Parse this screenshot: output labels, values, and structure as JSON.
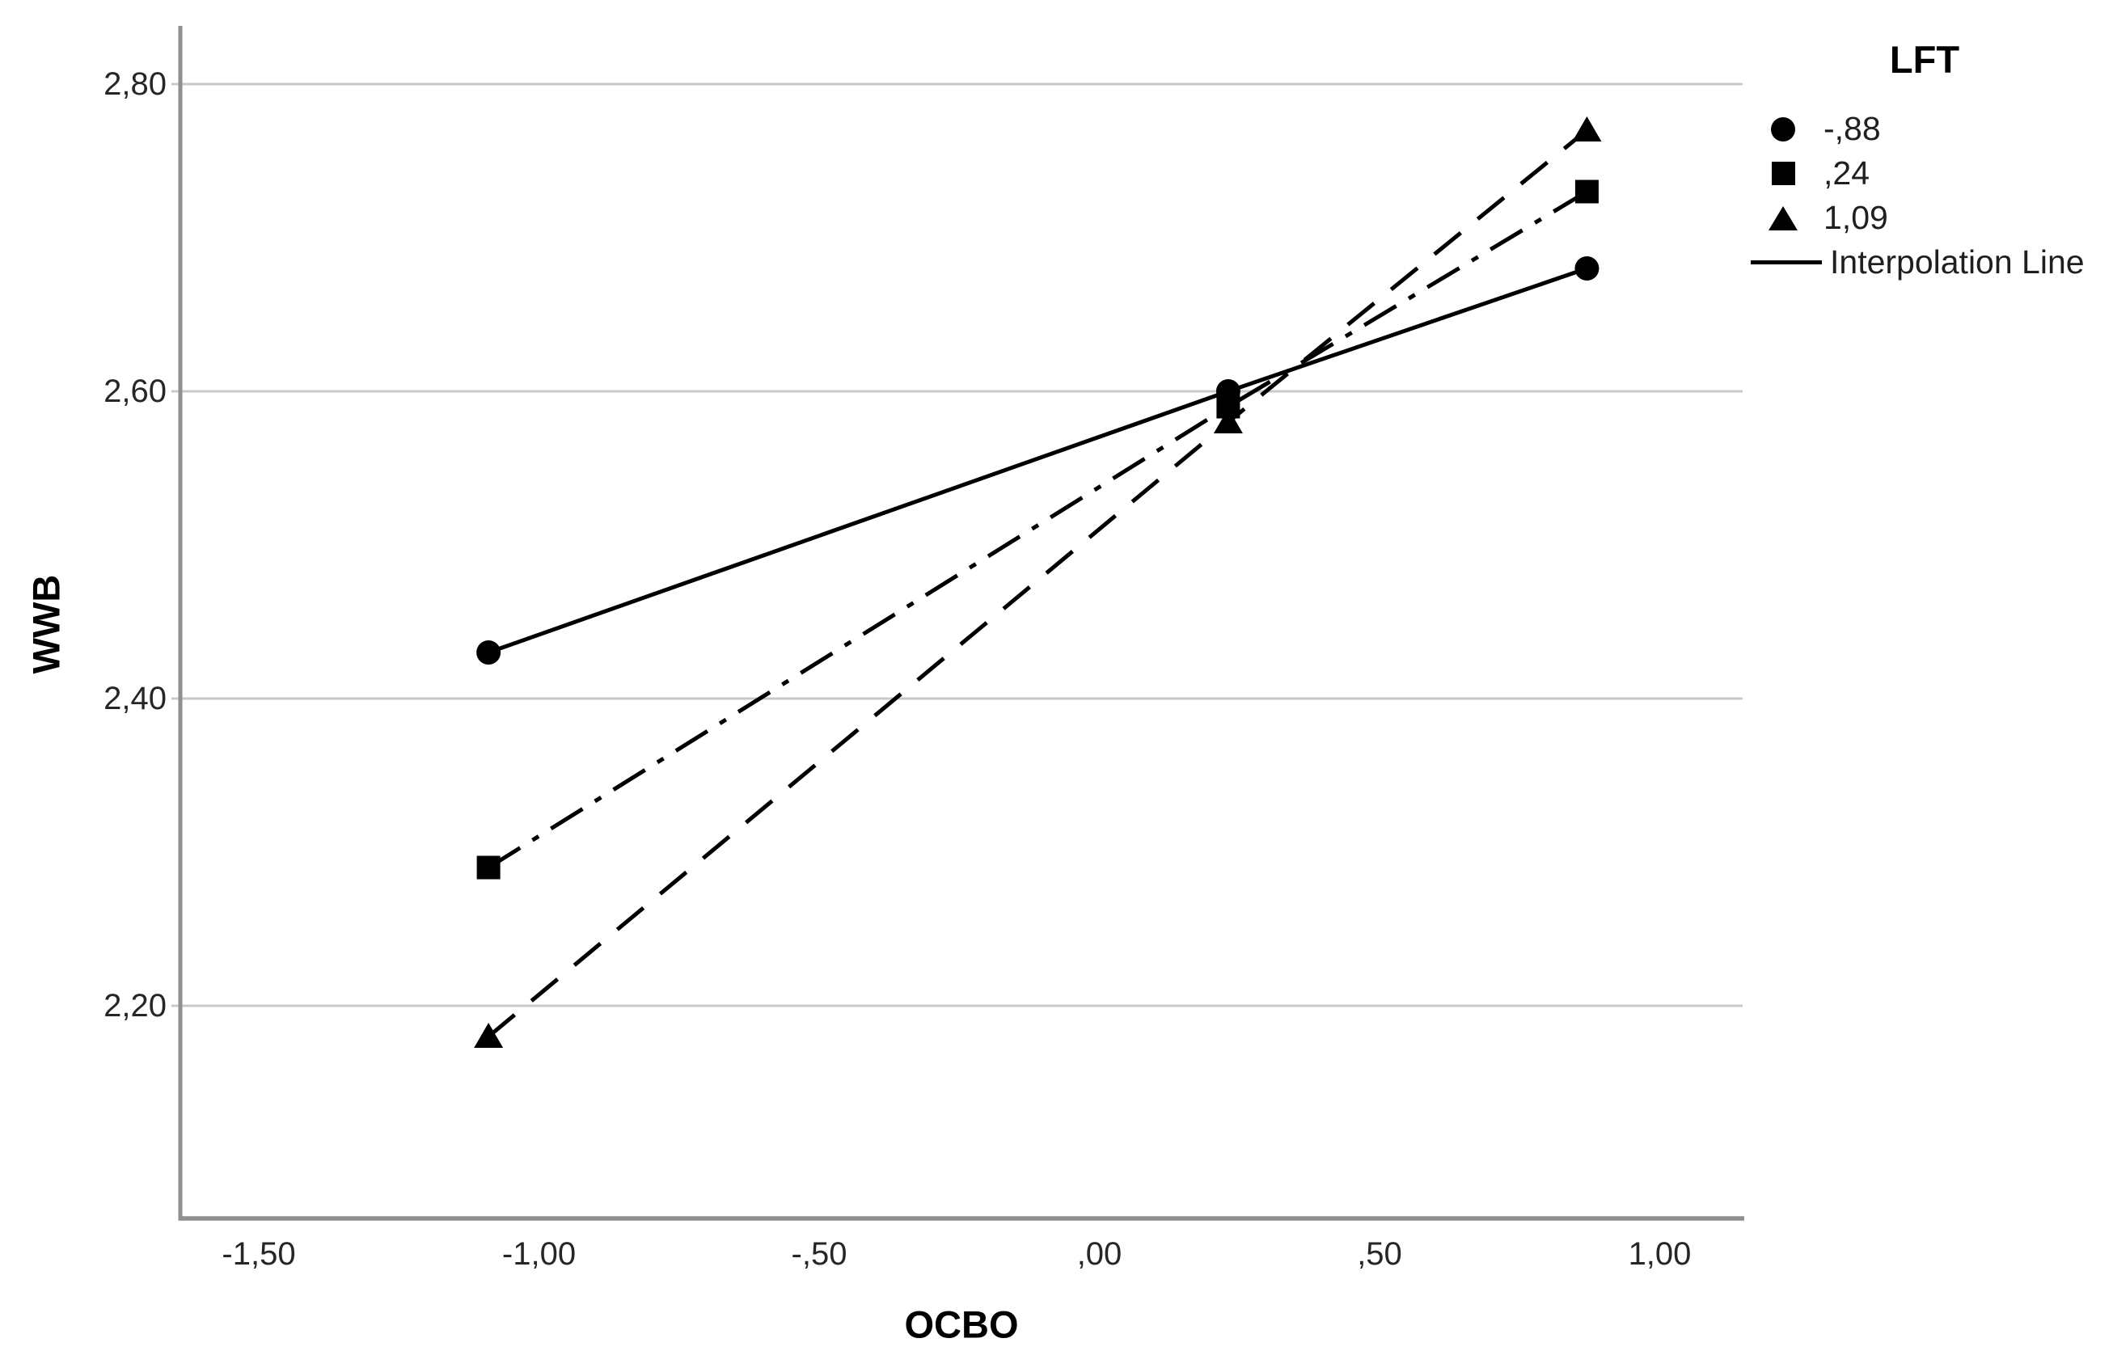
{
  "colors": {
    "background": "#ffffff",
    "gridline": "#c9c9c9",
    "axis": "#8f8f8f",
    "series": "#000000",
    "text": "#262626"
  },
  "legend": {
    "title": "LFT",
    "items": [
      {
        "label": "-,88",
        "marker": "circle"
      },
      {
        "label": ",24",
        "marker": "square"
      },
      {
        "label": "1,09",
        "marker": "triangle"
      }
    ],
    "interpolation_label": "Interpolation Line"
  },
  "chart_data": {
    "type": "line",
    "title": "",
    "xlabel": "OCBO",
    "ylabel": "WWB",
    "x_ticks": [
      -1.5,
      -1.0,
      -0.5,
      0.0,
      0.5,
      1.0
    ],
    "x_tick_labels": [
      "-1,50",
      "-1,00",
      "-,50",
      ",00",
      ",50",
      "1,00"
    ],
    "y_ticks": [
      2.8,
      2.6,
      2.4,
      2.2
    ],
    "y_tick_labels": [
      "2,80",
      "2,60",
      "2,40",
      "2,20"
    ],
    "xlim": [
      -1.64,
      1.15
    ],
    "ylim": [
      2.06,
      2.84
    ],
    "grid": "horizontal-only",
    "legend_position": "top-right",
    "legend_title": "LFT",
    "series": [
      {
        "name": "-,88",
        "marker": "circle",
        "line_style": "solid",
        "points": [
          [
            -1.09,
            2.43
          ],
          [
            0.23,
            2.6
          ],
          [
            0.87,
            2.68
          ]
        ]
      },
      {
        "name": ",24",
        "marker": "square",
        "line_style": "dash-dot",
        "points": [
          [
            -1.09,
            2.29
          ],
          [
            0.23,
            2.59
          ],
          [
            0.87,
            2.73
          ]
        ]
      },
      {
        "name": "1,09",
        "marker": "triangle",
        "line_style": "dashed",
        "points": [
          [
            -1.09,
            2.18
          ],
          [
            0.23,
            2.58
          ],
          [
            0.87,
            2.77
          ]
        ]
      }
    ],
    "interpolation_line_label": "Interpolation Line"
  }
}
